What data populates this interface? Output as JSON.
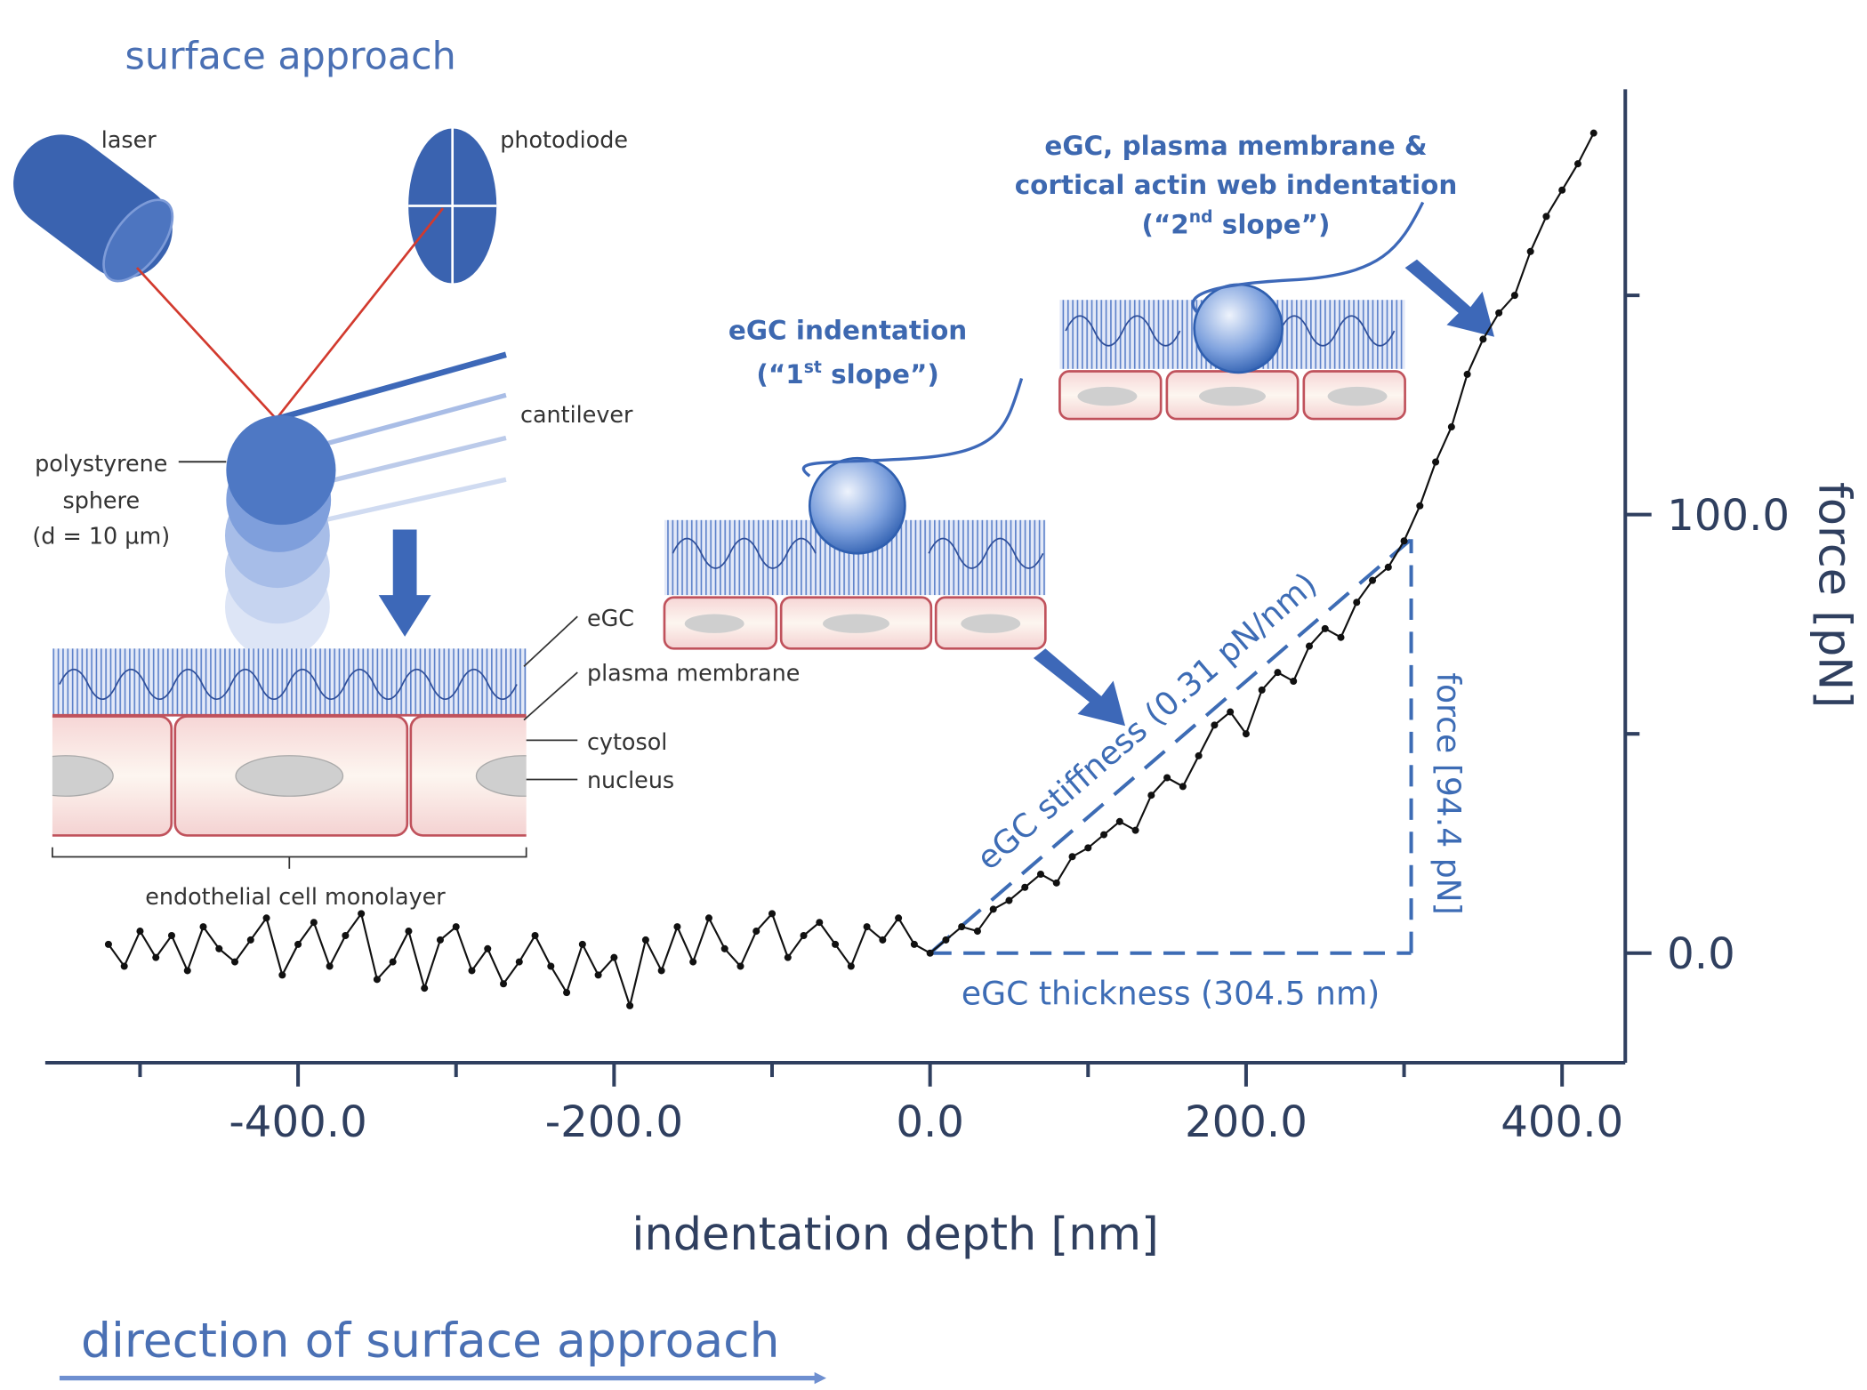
{
  "chart_data": {
    "type": "line",
    "x_label": "indentation depth [nm]",
    "y_label": "force [pN]",
    "color": "#111111",
    "x": [
      -520,
      -510,
      -500,
      -490,
      -480,
      -470,
      -460,
      -450,
      -440,
      -430,
      -420,
      -410,
      -400,
      -390,
      -380,
      -370,
      -360,
      -350,
      -340,
      -330,
      -320,
      -310,
      -300,
      -290,
      -280,
      -270,
      -260,
      -250,
      -240,
      -230,
      -220,
      -210,
      -200,
      -190,
      -180,
      -170,
      -160,
      -150,
      -140,
      -130,
      -120,
      -110,
      -100,
      -90,
      -80,
      -70,
      -60,
      -50,
      -40,
      -30,
      -20,
      -10,
      0,
      10,
      20,
      30,
      40,
      50,
      60,
      70,
      80,
      90,
      100,
      110,
      120,
      130,
      140,
      150,
      160,
      170,
      180,
      190,
      200,
      210,
      220,
      230,
      240,
      250,
      260,
      270,
      280,
      290,
      300,
      310,
      320,
      330,
      340,
      350,
      360,
      370,
      380,
      390,
      400,
      410,
      420
    ],
    "values": [
      2,
      -3,
      5,
      -1,
      4,
      -4,
      6,
      1,
      -2,
      3,
      8,
      -5,
      2,
      7,
      -3,
      4,
      9,
      -6,
      -2,
      5,
      -8,
      3,
      6,
      -4,
      1,
      -7,
      -2,
      4,
      -3,
      -9,
      2,
      -5,
      -1,
      -12,
      3,
      -4,
      6,
      -2,
      8,
      1,
      -3,
      5,
      9,
      -1,
      4,
      7,
      2,
      -3,
      6,
      3,
      8,
      2,
      0,
      3,
      6,
      5,
      10,
      12,
      15,
      18,
      16,
      22,
      24,
      27,
      30,
      28,
      36,
      40,
      38,
      45,
      52,
      55,
      50,
      60,
      64,
      62,
      70,
      74,
      72,
      80,
      85,
      88,
      94,
      102,
      112,
      120,
      132,
      140,
      146,
      150,
      160,
      168,
      174,
      180,
      187
    ],
    "xlim": [
      -560,
      440
    ],
    "xticks": [
      {
        "value": -400,
        "label": "-400.0"
      },
      {
        "value": -200,
        "label": "-200.0"
      },
      {
        "value": 0,
        "label": "0.0"
      },
      {
        "value": 200,
        "label": "200.0"
      },
      {
        "value": 400,
        "label": "400.0"
      }
    ],
    "xticks_minor": [
      -500,
      -300,
      -100,
      100,
      300
    ],
    "ylim": [
      -25,
      197
    ],
    "yticks": [
      {
        "value": 0,
        "label": "0.0"
      },
      {
        "value": 100,
        "label": "100.0"
      }
    ],
    "yticks_minor": [
      50,
      150
    ],
    "annotations": {
      "stiffness": {
        "value": 0.31,
        "label": "eGC stiffness (0.31 pN/nm)"
      },
      "force": {
        "value": 94.4,
        "label": "force [94.4 pN]"
      },
      "thickness": {
        "value": 304.5,
        "label": "eGC thickness (304.5 nm)"
      }
    }
  },
  "diagram": {
    "title": "surface approach",
    "laser": "laser",
    "photodiode": "photodiode",
    "cantilever": "cantilever",
    "sphere": [
      "polystyrene",
      "sphere",
      "(d = 10 µm)"
    ],
    "layers": [
      "eGC",
      "plasma membrane",
      "cytosol",
      "nucleus"
    ],
    "monolayer": "endothelial cell monolayer",
    "first_slope": {
      "line1": "eGC indentation",
      "line2_start": "(“1",
      "line2_sup": "st",
      "line2_end": " slope”)"
    },
    "second_slope": {
      "line1": "eGC, plasma membrane &",
      "line2": "cortical actin web indentation",
      "line3_start": "(“2",
      "line3_sup": "nd",
      "line3_end": " slope”)"
    },
    "direction": "direction of surface approach"
  }
}
